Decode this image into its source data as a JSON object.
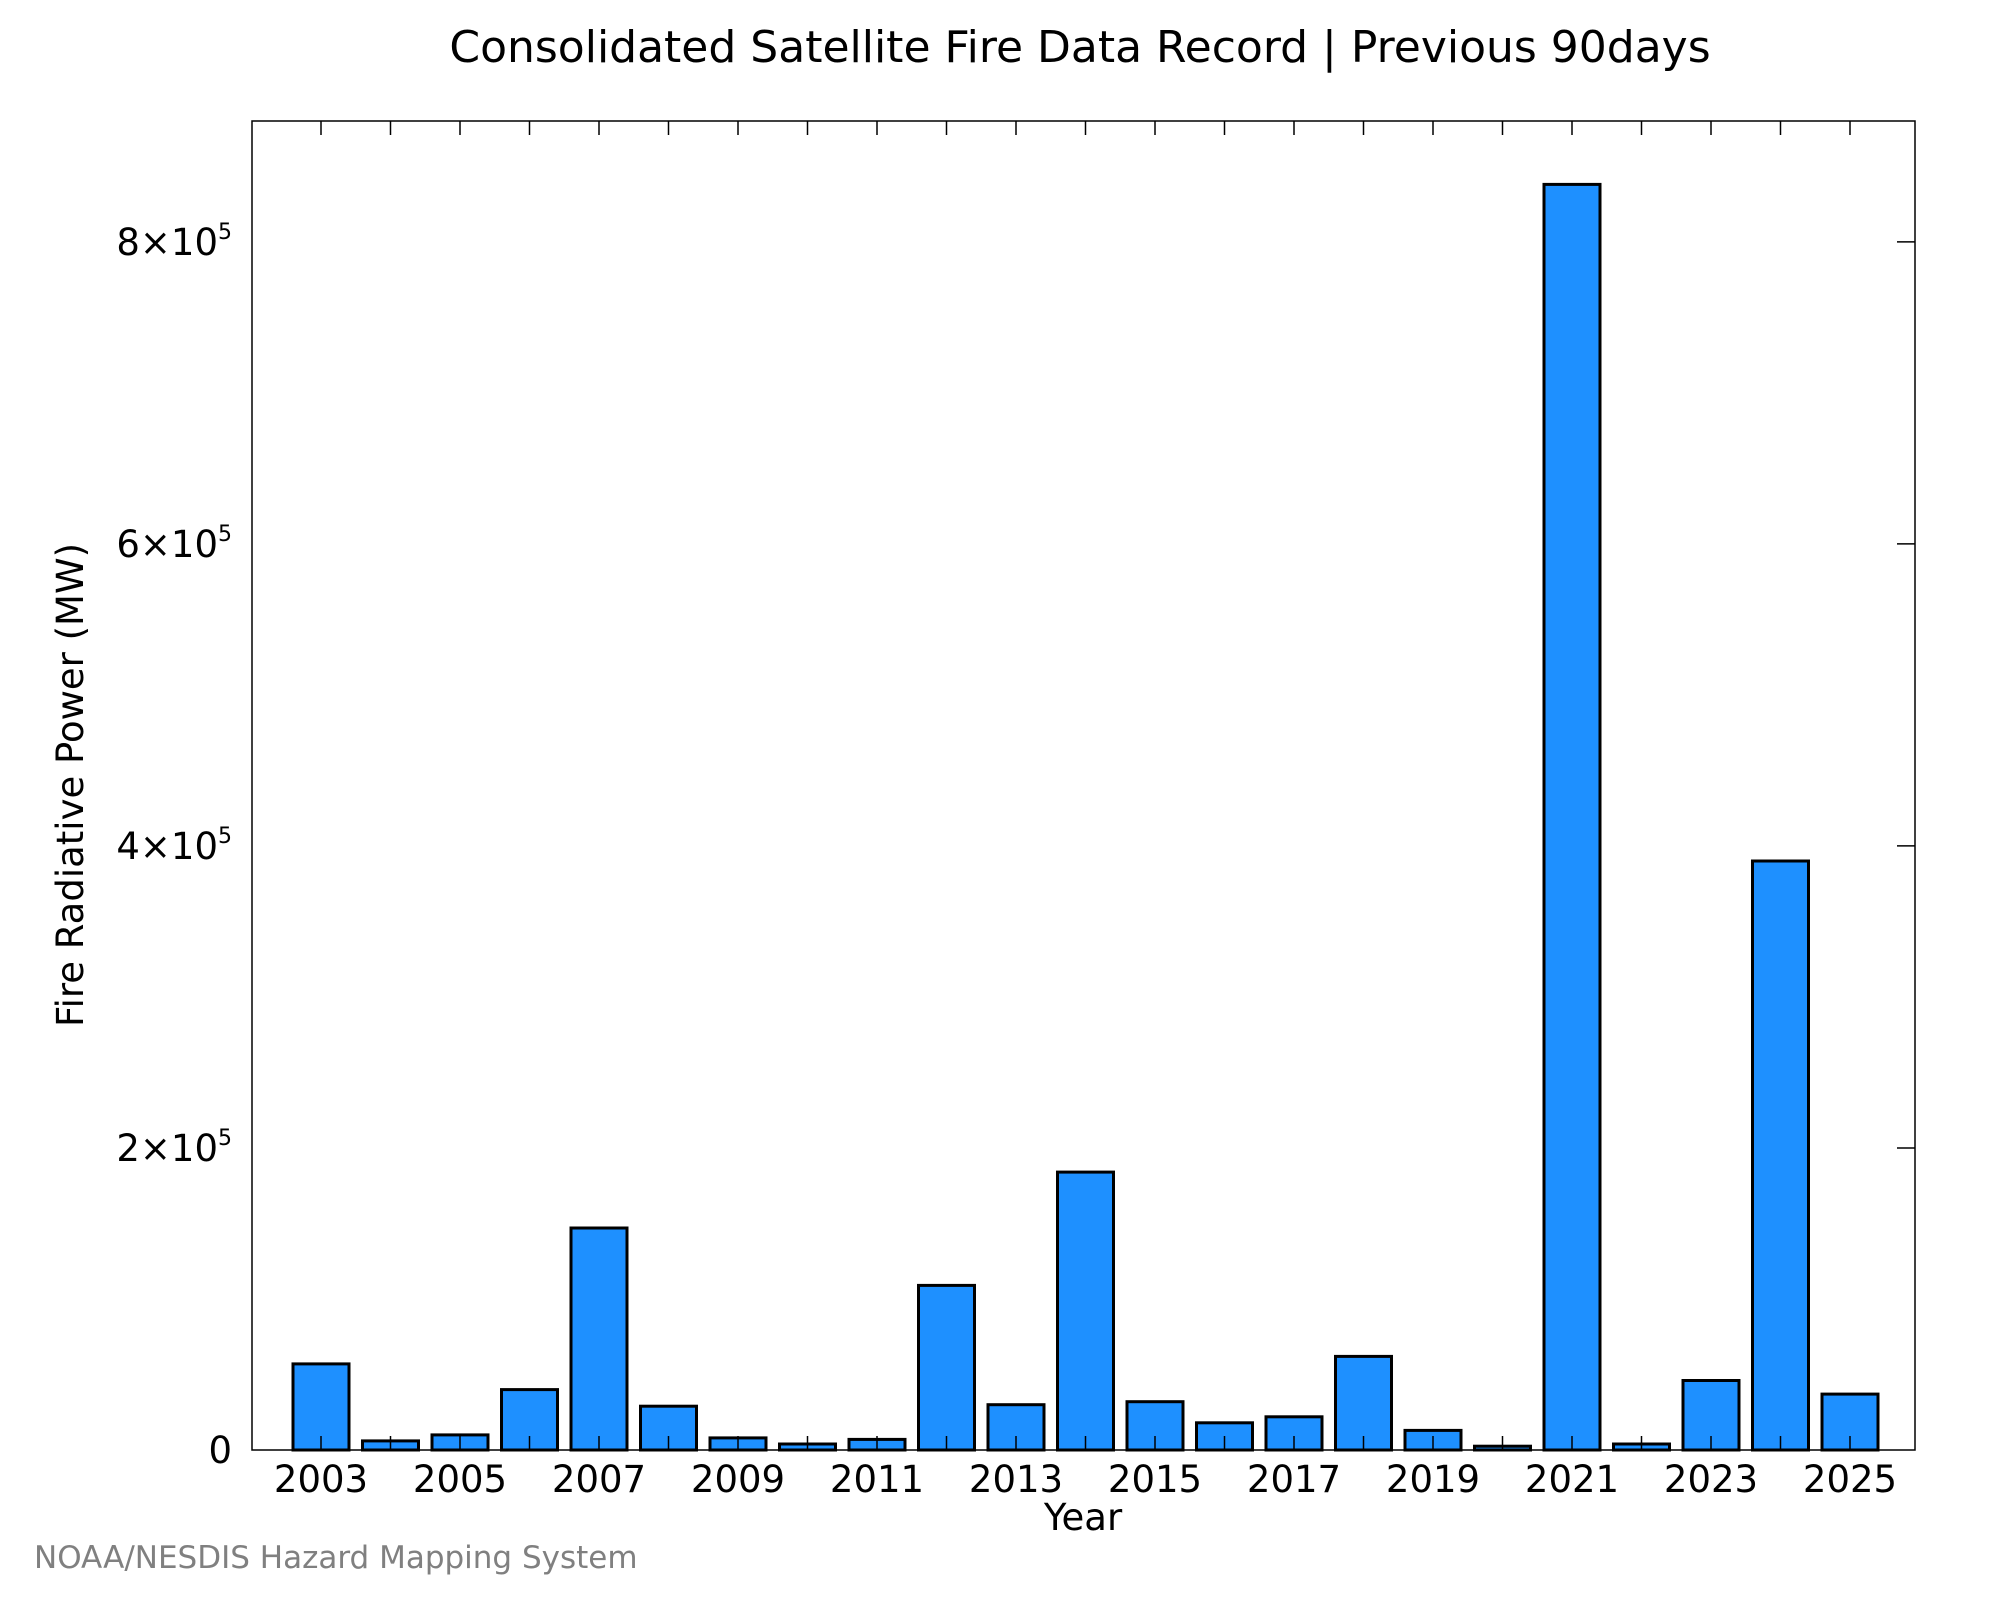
{
  "credit": "NOAA/NESDIS Hazard Mapping System",
  "chart_data": {
    "type": "bar",
    "title": "Consolidated Satellite Fire Data Record | Previous 90days",
    "xlabel": "Year",
    "ylabel": "Fire Radiative Power (MW)",
    "categories": [
      "2003",
      "2004",
      "2005",
      "2006",
      "2007",
      "2008",
      "2009",
      "2010",
      "2011",
      "2012",
      "2013",
      "2014",
      "2015",
      "2016",
      "2017",
      "2018",
      "2019",
      "2020",
      "2021",
      "2022",
      "2023",
      "2024",
      "2025"
    ],
    "values": [
      57000,
      6000,
      10000,
      40000,
      147000,
      29000,
      8000,
      4000,
      7000,
      109000,
      30000,
      184000,
      32000,
      18000,
      22000,
      62000,
      13000,
      2500,
      838000,
      4000,
      46000,
      390000,
      37000
    ],
    "x_tick_labels": [
      "2003",
      "2005",
      "2007",
      "2009",
      "2011",
      "2013",
      "2015",
      "2017",
      "2019",
      "2021",
      "2023",
      "2025"
    ],
    "y_ticks": [
      {
        "value": 0,
        "mantissa": "0",
        "exponent": ""
      },
      {
        "value": 200000,
        "mantissa": "2×10",
        "exponent": "5"
      },
      {
        "value": 400000,
        "mantissa": "4×10",
        "exponent": "5"
      },
      {
        "value": 600000,
        "mantissa": "6×10",
        "exponent": "5"
      },
      {
        "value": 800000,
        "mantissa": "8×10",
        "exponent": "5"
      }
    ],
    "ylim": [
      0,
      880000
    ],
    "bar_color": "#1e90ff",
    "grid": false,
    "legend": "none"
  }
}
